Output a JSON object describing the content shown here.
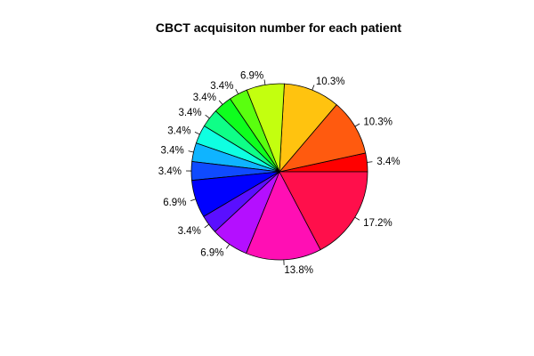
{
  "chart_data": {
    "type": "pie",
    "title": "CBCT acquisiton number for each patient",
    "start_angle_deg": 0,
    "direction": "counterclockwise",
    "slices": [
      {
        "label": "3.4%",
        "value": 3.4,
        "color": "#ff0000"
      },
      {
        "label": "10.3%",
        "value": 10.3,
        "color": "#ff5a0f"
      },
      {
        "label": "10.3%",
        "value": 10.3,
        "color": "#ffc30f"
      },
      {
        "label": "6.9%",
        "value": 6.9,
        "color": "#c3ff0f"
      },
      {
        "label": "3.4%",
        "value": 3.4,
        "color": "#5aff0f"
      },
      {
        "label": "3.4%",
        "value": 3.4,
        "color": "#0fff1e"
      },
      {
        "label": "3.4%",
        "value": 3.4,
        "color": "#0fff87"
      },
      {
        "label": "3.4%",
        "value": 3.4,
        "color": "#0fffe1"
      },
      {
        "label": "3.4%",
        "value": 3.4,
        "color": "#0fb4ff"
      },
      {
        "label": "3.4%",
        "value": 3.4,
        "color": "#0f4bff"
      },
      {
        "label": "6.9%",
        "value": 6.9,
        "color": "#0000ff"
      },
      {
        "label": "3.4%",
        "value": 3.4,
        "color": "#5a0fff"
      },
      {
        "label": "6.9%",
        "value": 6.9,
        "color": "#b40fff"
      },
      {
        "label": "13.8%",
        "value": 13.8,
        "color": "#ff0fb4"
      },
      {
        "label": "17.2%",
        "value": 17.2,
        "color": "#ff0f4b"
      }
    ]
  }
}
